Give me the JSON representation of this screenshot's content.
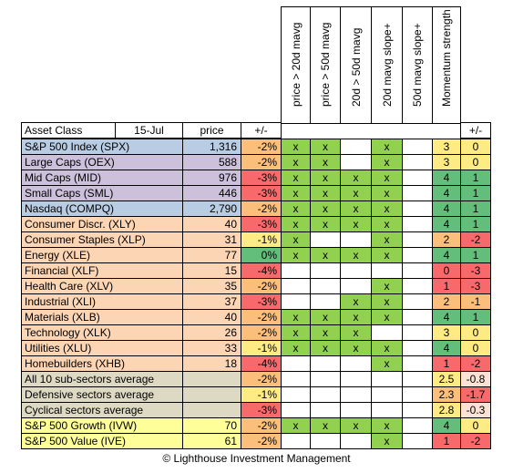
{
  "headers": {
    "asset_class": "Asset Class",
    "date": "15-Jul",
    "price": "price",
    "change": "+/-",
    "criteria": [
      "price > 20d mavg",
      "price > 50d mavg",
      "20d > 50d mavg",
      "20d mavg slope+",
      "50d mavg slope+"
    ],
    "momentum": "Momentum strength",
    "momentum_change": "+/-"
  },
  "colors": {
    "index": "#b8cce4",
    "size": "#ccc0da",
    "sector": "#fcd5b4",
    "average": "#ddd9c3",
    "style": "#ffff99",
    "check": "#92d050",
    "green": "#63be7b",
    "light_green": "#a9d08e",
    "yellow": "#ffeb84",
    "orange": "#fcbf7b",
    "red": "#f8696b",
    "pale_red": "#fbe2d5",
    "white": "#ffffff"
  },
  "rows": [
    {
      "name": "S&P 500 Index (SPX)",
      "group": "index",
      "price": "1,316",
      "change": "-2%",
      "change_color": "orange",
      "checks": [
        true,
        true,
        false,
        true,
        false
      ],
      "momentum": "3",
      "momentum_color": "yellow",
      "mchange": "0",
      "mchange_color": "yellow"
    },
    {
      "name": "Large Caps (OEX)",
      "group": "size",
      "price": "588",
      "change": "-2%",
      "change_color": "orange",
      "checks": [
        true,
        true,
        false,
        true,
        false
      ],
      "momentum": "3",
      "momentum_color": "yellow",
      "mchange": "0",
      "mchange_color": "yellow"
    },
    {
      "name": "Mid Caps (MID)",
      "group": "size",
      "price": "976",
      "change": "-3%",
      "change_color": "red",
      "checks": [
        true,
        true,
        true,
        true,
        false
      ],
      "momentum": "4",
      "momentum_color": "green",
      "mchange": "1",
      "mchange_color": "green"
    },
    {
      "name": "Small Caps (SML)",
      "group": "size",
      "price": "446",
      "change": "-3%",
      "change_color": "red",
      "checks": [
        true,
        true,
        true,
        true,
        false
      ],
      "momentum": "4",
      "momentum_color": "green",
      "mchange": "1",
      "mchange_color": "green"
    },
    {
      "name": "Nasdaq (COMPQ)",
      "group": "index",
      "price": "2,790",
      "change": "-2%",
      "change_color": "orange",
      "checks": [
        true,
        true,
        true,
        true,
        false
      ],
      "momentum": "4",
      "momentum_color": "green",
      "mchange": "1",
      "mchange_color": "green"
    },
    {
      "name": "Consumer Discr. (XLY)",
      "group": "sector",
      "price": "40",
      "change": "-3%",
      "change_color": "red",
      "checks": [
        true,
        true,
        true,
        true,
        false
      ],
      "momentum": "4",
      "momentum_color": "green",
      "mchange": "1",
      "mchange_color": "green"
    },
    {
      "name": "Consumer Staples (XLP)",
      "group": "sector",
      "price": "31",
      "change": "-1%",
      "change_color": "yellow",
      "checks": [
        true,
        false,
        false,
        true,
        false
      ],
      "momentum": "2",
      "momentum_color": "orange",
      "mchange": "-2",
      "mchange_color": "red"
    },
    {
      "name": "Energy (XLE)",
      "group": "sector",
      "price": "77",
      "change": "0%",
      "change_color": "green",
      "checks": [
        true,
        true,
        true,
        true,
        false
      ],
      "momentum": "4",
      "momentum_color": "green",
      "mchange": "1",
      "mchange_color": "green"
    },
    {
      "name": "Financial (XLF)",
      "group": "sector",
      "price": "15",
      "change": "-4%",
      "change_color": "red",
      "checks": [
        false,
        false,
        false,
        false,
        false
      ],
      "momentum": "0",
      "momentum_color": "red",
      "mchange": "-3",
      "mchange_color": "red"
    },
    {
      "name": "Health Care (XLV)",
      "group": "sector",
      "price": "35",
      "change": "-2%",
      "change_color": "orange",
      "checks": [
        false,
        false,
        false,
        true,
        false
      ],
      "momentum": "1",
      "momentum_color": "red",
      "mchange": "-3",
      "mchange_color": "red"
    },
    {
      "name": "Industrial (XLI)",
      "group": "sector",
      "price": "37",
      "change": "-3%",
      "change_color": "red",
      "checks": [
        false,
        false,
        true,
        true,
        false
      ],
      "momentum": "2",
      "momentum_color": "orange",
      "mchange": "-1",
      "mchange_color": "orange"
    },
    {
      "name": "Materials (XLB)",
      "group": "sector",
      "price": "40",
      "change": "-2%",
      "change_color": "orange",
      "checks": [
        true,
        true,
        true,
        true,
        false
      ],
      "momentum": "4",
      "momentum_color": "green",
      "mchange": "1",
      "mchange_color": "green"
    },
    {
      "name": "Technology (XLK)",
      "group": "sector",
      "price": "26",
      "change": "-2%",
      "change_color": "orange",
      "checks": [
        true,
        true,
        true,
        false,
        false
      ],
      "momentum": "3",
      "momentum_color": "yellow",
      "mchange": "0",
      "mchange_color": "yellow"
    },
    {
      "name": "Utilities (XLU)",
      "group": "sector",
      "price": "33",
      "change": "-1%",
      "change_color": "yellow",
      "checks": [
        true,
        true,
        true,
        true,
        false
      ],
      "momentum": "4",
      "momentum_color": "green",
      "mchange": "0",
      "mchange_color": "yellow"
    },
    {
      "name": "Homebuilders (XHB)",
      "group": "sector",
      "price": "18",
      "change": "-4%",
      "change_color": "red",
      "checks": [
        false,
        false,
        false,
        true,
        false
      ],
      "momentum": "1",
      "momentum_color": "red",
      "mchange": "-2",
      "mchange_color": "red"
    },
    {
      "name": "All 10 sub-sectors average",
      "group": "average",
      "price": "",
      "change": "-2%",
      "change_color": "orange",
      "checks": [
        false,
        false,
        false,
        false,
        false
      ],
      "momentum": "2.5",
      "momentum_color": "yellow",
      "mchange": "-0.8",
      "mchange_color": "pale_red"
    },
    {
      "name": "Defensive sectors average",
      "group": "average",
      "price": "",
      "change": "-1%",
      "change_color": "yellow",
      "checks": [
        false,
        false,
        false,
        false,
        false
      ],
      "momentum": "2.3",
      "momentum_color": "orange",
      "mchange": "-1.7",
      "mchange_color": "red"
    },
    {
      "name": "Cyclical sectors average",
      "group": "average",
      "price": "",
      "change": "-3%",
      "change_color": "red",
      "checks": [
        false,
        false,
        false,
        false,
        false
      ],
      "momentum": "2.8",
      "momentum_color": "yellow",
      "mchange": "-0.3",
      "mchange_color": "pale_red"
    },
    {
      "name": "S&P 500 Growth (IVW)",
      "group": "style",
      "price": "70",
      "change": "-2%",
      "change_color": "orange",
      "checks": [
        true,
        true,
        true,
        true,
        false
      ],
      "momentum": "4",
      "momentum_color": "green",
      "mchange": "0",
      "mchange_color": "yellow"
    },
    {
      "name": "S&P 500 Value (IVE)",
      "group": "style",
      "price": "61",
      "change": "-2%",
      "change_color": "orange",
      "checks": [
        false,
        false,
        false,
        true,
        false
      ],
      "momentum": "1",
      "momentum_color": "red",
      "mchange": "-2",
      "mchange_color": "red"
    }
  ],
  "check_mark": "x",
  "footer": "© Lighthouse Investment Management"
}
